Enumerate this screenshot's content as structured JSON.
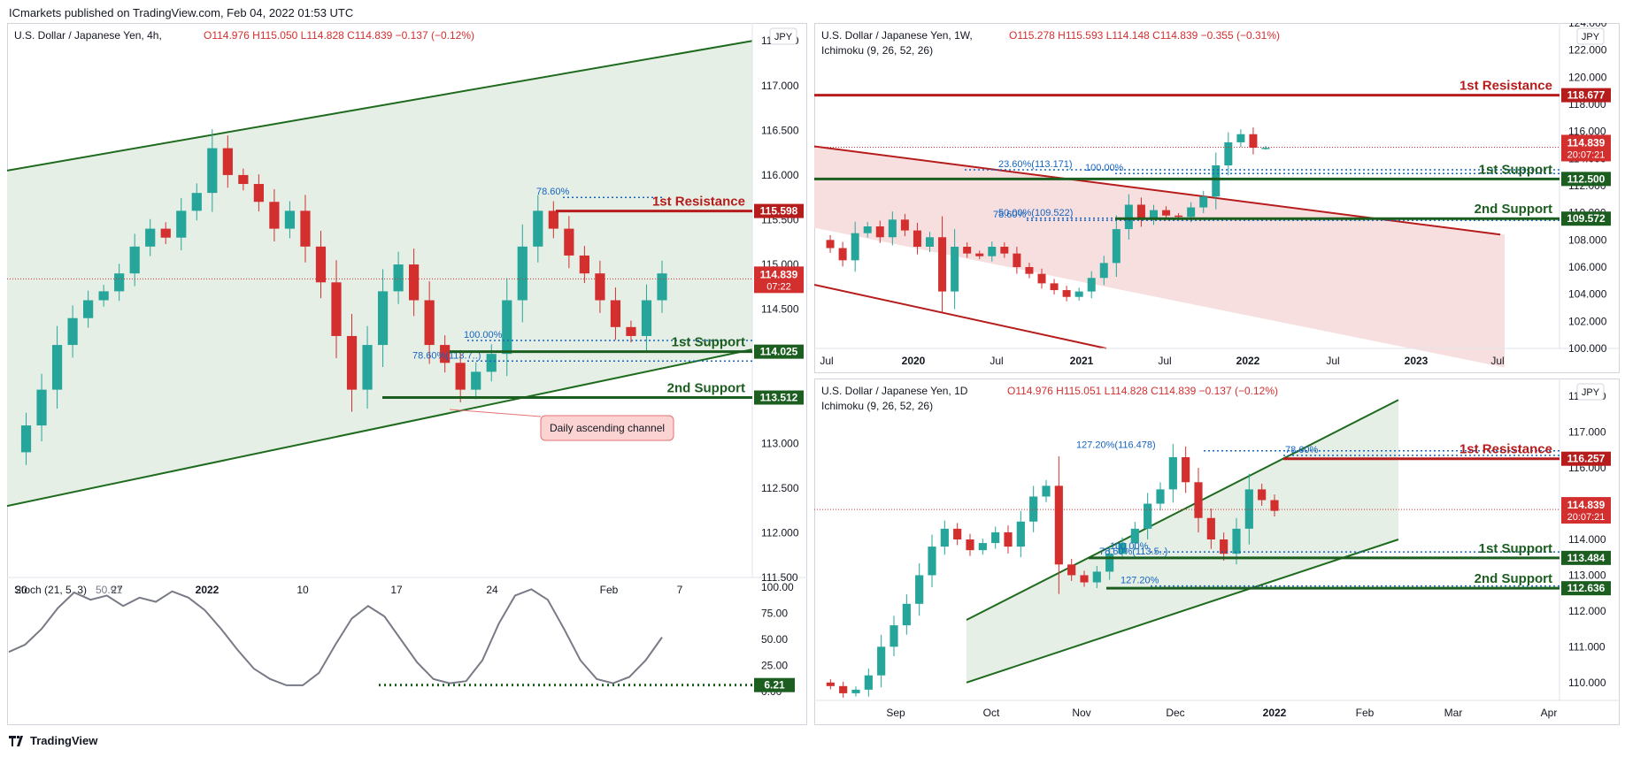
{
  "header": {
    "publisher": "ICmarkets published on TradingView.com, Feb 04, 2022 01:53 UTC"
  },
  "footer": {
    "brand": "TradingView",
    "logo": "tradingview-logo-icon"
  },
  "colors": {
    "support": "#1b5e20",
    "resistance": "#b71c1c",
    "fib": "#1565c0",
    "price": "#d32f2f",
    "channel_green": "#1e6b1e",
    "channel_red": "#b71c1c"
  },
  "chart_data": [
    {
      "type": "candlestick",
      "title": "U.S. Dollar / Japanese Yen, 4h,",
      "ohlc": {
        "o": "O114.976",
        "h": "H115.050",
        "l": "L114.828",
        "c": "C114.839",
        "chg": "−0.137 (−0.12%)"
      },
      "currency": "JPY",
      "ylim": [
        111.5,
        117.7
      ],
      "yticks": [
        "117.500",
        "117.000",
        "116.500",
        "116.000",
        "115.500",
        "115.000",
        "114.500",
        "114.000",
        "113.500",
        "113.000",
        "112.500",
        "112.000",
        "111.500"
      ],
      "xticks": [
        "20",
        "27",
        "2022",
        "10",
        "17",
        "24",
        "Feb",
        "7"
      ],
      "last_price": {
        "value": "114.839",
        "countdown": "07:22"
      },
      "levels": [
        {
          "name": "1st Resistance",
          "value": "115.598",
          "kind": "resistance"
        },
        {
          "name": "1st Support",
          "value": "114.025",
          "kind": "support"
        },
        {
          "name": "2nd Support",
          "value": "113.512",
          "kind": "support"
        }
      ],
      "fib": [
        "78.60%",
        "100.00%",
        "78.60%(113.7..)"
      ],
      "annotation": "Daily ascending channel",
      "price_path": [
        112.9,
        113.2,
        113.6,
        114.1,
        114.4,
        114.6,
        114.7,
        114.9,
        115.2,
        115.4,
        115.3,
        115.6,
        115.8,
        116.3,
        116.0,
        115.9,
        115.7,
        115.4,
        115.6,
        115.2,
        114.8,
        114.2,
        113.6,
        114.1,
        114.7,
        115.0,
        114.6,
        114.1,
        113.9,
        113.6,
        113.8,
        114.0,
        114.6,
        115.2,
        115.6,
        115.4,
        115.1,
        114.9,
        114.6,
        114.3,
        114.2,
        114.6,
        114.9
      ],
      "stoch": {
        "label": "Stoch (21, 5, 3)",
        "value": "50.91",
        "yticks": [
          "100.00",
          "75.00",
          "50.00",
          "25.00",
          "0.00"
        ],
        "last": "6.21",
        "path": [
          38,
          45,
          60,
          80,
          95,
          88,
          92,
          82,
          90,
          86,
          96,
          90,
          78,
          60,
          40,
          22,
          12,
          6,
          6,
          18,
          45,
          70,
          82,
          72,
          50,
          28,
          12,
          8,
          10,
          30,
          65,
          92,
          98,
          88,
          60,
          30,
          12,
          8,
          14,
          30,
          52
        ]
      }
    },
    {
      "type": "candlestick",
      "title": "U.S. Dollar / Japanese Yen, 1W,",
      "indicator": "Ichimoku (9, 26, 52, 26)",
      "ohlc": {
        "o": "O115.278",
        "h": "H115.593",
        "l": "L114.148",
        "c": "C114.839",
        "chg": "−0.355 (−0.31%)"
      },
      "currency": "JPY",
      "ylim": [
        100,
        124
      ],
      "yticks": [
        "124.000",
        "122.000",
        "120.000",
        "118.000",
        "116.000",
        "114.000",
        "112.000",
        "110.000",
        "108.000",
        "106.000",
        "104.000",
        "102.000",
        "100.000"
      ],
      "xticks": [
        "Jul",
        "2020",
        "Jul",
        "2021",
        "Jul",
        "2022",
        "Jul",
        "2023",
        "Jul"
      ],
      "last_price": {
        "value": "114.839",
        "countdown": "20:07:21"
      },
      "levels": [
        {
          "name": "1st Resistance",
          "value": "118.677",
          "kind": "resistance"
        },
        {
          "name": "1st Support",
          "value": "112.500",
          "kind": "support"
        },
        {
          "name": "2nd Support",
          "value": "109.572",
          "kind": "support"
        }
      ],
      "fib": [
        "23.60%(113.171)",
        "100.00%",
        "50.00%(109.522)",
        "78.60%"
      ],
      "price_path": [
        108.0,
        107.4,
        106.5,
        108.5,
        109.0,
        108.2,
        109.5,
        108.7,
        107.5,
        108.2,
        104.2,
        107.5,
        107.0,
        106.8,
        107.5,
        107.0,
        106.0,
        105.5,
        104.8,
        104.3,
        103.8,
        104.2,
        105.2,
        106.3,
        108.8,
        110.6,
        109.5,
        110.2,
        109.8,
        109.7,
        110.4,
        111.2,
        113.5,
        115.2,
        115.8,
        114.8,
        114.8
      ]
    },
    {
      "type": "candlestick",
      "title": "U.S. Dollar / Japanese Yen, 1D",
      "indicator": "Ichimoku (9, 26, 52, 26)",
      "ohlc": {
        "o": "O114.976",
        "h": "H115.051",
        "l": "L114.828",
        "c": "C114.839",
        "chg": "−0.137 (−0.12%)"
      },
      "currency": "JPY",
      "ylim": [
        109.5,
        118.5
      ],
      "yticks": [
        "118.000",
        "117.000",
        "116.000",
        "115.000",
        "114.000",
        "113.000",
        "112.000",
        "111.000",
        "110.000"
      ],
      "xticks": [
        "Sep",
        "Oct",
        "Nov",
        "Dec",
        "2022",
        "Feb",
        "Mar",
        "Apr"
      ],
      "last_price": {
        "value": "114.839",
        "countdown": "20:07:21"
      },
      "levels": [
        {
          "name": "1st Resistance",
          "value": "116.257",
          "kind": "resistance"
        },
        {
          "name": "1st Support",
          "value": "113.484",
          "kind": "support"
        },
        {
          "name": "2nd Support",
          "value": "112.636",
          "kind": "support"
        }
      ],
      "fib": [
        "127.20%(116.478)",
        "78.60%",
        "100.00%",
        "78.60%(113.5..)",
        "127.20%"
      ],
      "price_path": [
        110.0,
        109.9,
        109.7,
        109.8,
        110.2,
        111.0,
        111.6,
        112.2,
        113.0,
        113.8,
        114.3,
        114.0,
        113.7,
        113.9,
        114.2,
        113.8,
        114.5,
        115.2,
        115.5,
        113.3,
        113.0,
        112.8,
        113.1,
        113.6,
        113.9,
        114.3,
        115.0,
        115.4,
        116.3,
        115.6,
        114.6,
        114.0,
        113.6,
        114.3,
        115.4,
        115.1,
        114.8
      ]
    }
  ]
}
